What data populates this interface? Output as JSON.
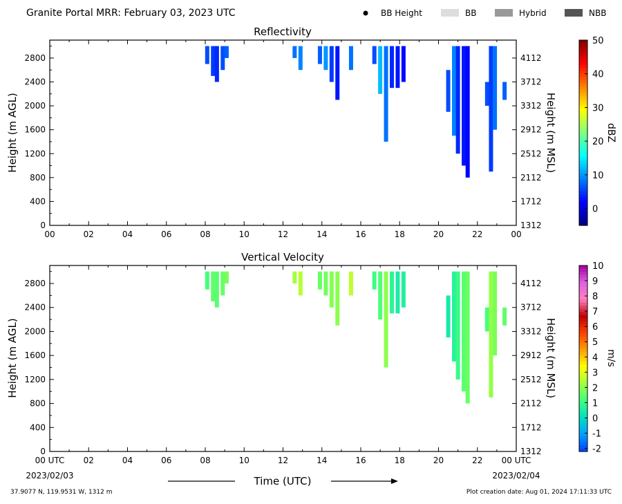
{
  "header": {
    "title": "Granite Portal MRR:  February 03, 2023 UTC",
    "legend": [
      {
        "label": "BB Height",
        "symbol": "dot",
        "color": "#000000"
      },
      {
        "label": "BB",
        "symbol": "box",
        "color": "#dddddd"
      },
      {
        "label": "Hybrid",
        "symbol": "box",
        "color": "#999999"
      },
      {
        "label": "NBB",
        "symbol": "box",
        "color": "#555555"
      }
    ]
  },
  "chart_data": [
    {
      "type": "heatmap",
      "title": "Reflectivity",
      "ylabel": "Height (m AGL)",
      "y2label": "Height (m MSL)",
      "yticks": [
        0,
        400,
        800,
        1200,
        1600,
        2000,
        2400,
        2800
      ],
      "y2ticks": [
        1312,
        1712,
        2112,
        2512,
        2912,
        3312,
        3712,
        4112
      ],
      "xticks": [
        "00",
        "02",
        "04",
        "06",
        "08",
        "10",
        "12",
        "14",
        "16",
        "18",
        "20",
        "22",
        "00"
      ],
      "xlim": [
        0,
        24
      ],
      "ylim": [
        0,
        3100
      ],
      "colorbar": {
        "label": "dBZ",
        "ticks": [
          0,
          10,
          20,
          30,
          40,
          50
        ],
        "range": [
          -5,
          50
        ],
        "colors": [
          "#000080",
          "#0000ff",
          "#0080ff",
          "#00ffff",
          "#80ff80",
          "#ffff00",
          "#ff8000",
          "#ff0000",
          "#800000"
        ]
      },
      "data_columns": [
        {
          "x": 8.1,
          "top": 3000,
          "bottom": 2700,
          "value": 6
        },
        {
          "x": 8.4,
          "top": 3000,
          "bottom": 2500,
          "value": 5
        },
        {
          "x": 8.6,
          "top": 3000,
          "bottom": 2400,
          "value": 4
        },
        {
          "x": 8.9,
          "top": 3000,
          "bottom": 2600,
          "value": 6
        },
        {
          "x": 9.1,
          "top": 3000,
          "bottom": 2800,
          "value": 7
        },
        {
          "x": 12.6,
          "top": 3000,
          "bottom": 2800,
          "value": 8
        },
        {
          "x": 12.9,
          "top": 3000,
          "bottom": 2600,
          "value": 9
        },
        {
          "x": 13.9,
          "top": 3000,
          "bottom": 2700,
          "value": 7
        },
        {
          "x": 14.2,
          "top": 3000,
          "bottom": 2600,
          "value": 10
        },
        {
          "x": 14.5,
          "top": 3000,
          "bottom": 2400,
          "value": 5
        },
        {
          "x": 14.8,
          "top": 3000,
          "bottom": 2100,
          "value": 3
        },
        {
          "x": 15.5,
          "top": 3000,
          "bottom": 2600,
          "value": 8
        },
        {
          "x": 16.7,
          "top": 3000,
          "bottom": 2700,
          "value": 6
        },
        {
          "x": 17.0,
          "top": 3000,
          "bottom": 2200,
          "value": 12
        },
        {
          "x": 17.3,
          "top": 3000,
          "bottom": 1400,
          "value": 8
        },
        {
          "x": 17.6,
          "top": 3000,
          "bottom": 2300,
          "value": 4
        },
        {
          "x": 17.9,
          "top": 3000,
          "bottom": 2300,
          "value": 3
        },
        {
          "x": 18.2,
          "top": 3000,
          "bottom": 2400,
          "value": 2
        },
        {
          "x": 20.5,
          "top": 2600,
          "bottom": 1900,
          "value": 6
        },
        {
          "x": 20.8,
          "top": 3000,
          "bottom": 1500,
          "value": 9
        },
        {
          "x": 21.0,
          "top": 3000,
          "bottom": 1200,
          "value": 4
        },
        {
          "x": 21.3,
          "top": 3000,
          "bottom": 1000,
          "value": 3
        },
        {
          "x": 21.5,
          "top": 3000,
          "bottom": 800,
          "value": 2
        },
        {
          "x": 22.5,
          "top": 2400,
          "bottom": 2000,
          "value": 6
        },
        {
          "x": 22.7,
          "top": 3000,
          "bottom": 900,
          "value": 5
        },
        {
          "x": 22.9,
          "top": 3000,
          "bottom": 1600,
          "value": 8
        },
        {
          "x": 23.4,
          "top": 2400,
          "bottom": 2100,
          "value": 7
        }
      ]
    },
    {
      "type": "heatmap",
      "title": "Vertical Velocity",
      "ylabel": "Height (m AGL)",
      "y2label": "Height (m MSL)",
      "yticks": [
        0,
        400,
        800,
        1200,
        1600,
        2000,
        2400,
        2800
      ],
      "y2ticks": [
        1312,
        1712,
        2112,
        2512,
        2912,
        3312,
        3712,
        4112
      ],
      "xticks": [
        "00 UTC",
        "02",
        "04",
        "06",
        "08",
        "10",
        "12",
        "14",
        "16",
        "18",
        "20",
        "22",
        "00 UTC"
      ],
      "xlim": [
        0,
        24
      ],
      "ylim": [
        0,
        3100
      ],
      "colorbar": {
        "label": "m/s",
        "ticks": [
          -2,
          -1,
          0,
          1,
          2,
          3,
          4,
          5,
          6,
          7,
          8,
          9,
          10
        ],
        "range": [
          -2.2,
          10
        ],
        "colors": [
          "#0040ff",
          "#00a0ff",
          "#00e0c0",
          "#40ff80",
          "#a0ff40",
          "#ffff00",
          "#ffa000",
          "#ff4000",
          "#c00000",
          "#ff80c0",
          "#e060e0",
          "#a000a0"
        ]
      },
      "data_columns": [
        {
          "x": 8.1,
          "top": 3000,
          "bottom": 2700,
          "value": 1.2
        },
        {
          "x": 8.4,
          "top": 3000,
          "bottom": 2500,
          "value": 1.5
        },
        {
          "x": 8.6,
          "top": 3000,
          "bottom": 2400,
          "value": 1.4
        },
        {
          "x": 8.9,
          "top": 3000,
          "bottom": 2600,
          "value": 1.6
        },
        {
          "x": 9.1,
          "top": 3000,
          "bottom": 2800,
          "value": 1.8
        },
        {
          "x": 12.6,
          "top": 3000,
          "bottom": 2800,
          "value": 2.3
        },
        {
          "x": 12.9,
          "top": 3000,
          "bottom": 2600,
          "value": 2.5
        },
        {
          "x": 13.9,
          "top": 3000,
          "bottom": 2700,
          "value": 1.6
        },
        {
          "x": 14.2,
          "top": 3000,
          "bottom": 2600,
          "value": 1.7
        },
        {
          "x": 14.5,
          "top": 3000,
          "bottom": 2400,
          "value": 1.9
        },
        {
          "x": 14.8,
          "top": 3000,
          "bottom": 2100,
          "value": 2.0
        },
        {
          "x": 15.5,
          "top": 3000,
          "bottom": 2600,
          "value": 2.6
        },
        {
          "x": 16.7,
          "top": 3000,
          "bottom": 2700,
          "value": 1.1
        },
        {
          "x": 17.0,
          "top": 3000,
          "bottom": 2200,
          "value": 1.3
        },
        {
          "x": 17.3,
          "top": 3000,
          "bottom": 1400,
          "value": 2.0
        },
        {
          "x": 17.6,
          "top": 3000,
          "bottom": 2300,
          "value": 0.8
        },
        {
          "x": 17.9,
          "top": 3000,
          "bottom": 2300,
          "value": 0.5
        },
        {
          "x": 18.2,
          "top": 3000,
          "bottom": 2400,
          "value": 0.6
        },
        {
          "x": 20.5,
          "top": 2600,
          "bottom": 1900,
          "value": 0.4
        },
        {
          "x": 20.8,
          "top": 3000,
          "bottom": 1500,
          "value": 0.7
        },
        {
          "x": 21.0,
          "top": 3000,
          "bottom": 1200,
          "value": 1.0
        },
        {
          "x": 21.3,
          "top": 3000,
          "bottom": 1000,
          "value": 1.4
        },
        {
          "x": 21.5,
          "top": 3000,
          "bottom": 800,
          "value": 1.6
        },
        {
          "x": 22.5,
          "top": 2400,
          "bottom": 2000,
          "value": 1.2
        },
        {
          "x": 22.7,
          "top": 3000,
          "bottom": 900,
          "value": 2.1
        },
        {
          "x": 22.9,
          "top": 3000,
          "bottom": 1600,
          "value": 1.8
        },
        {
          "x": 23.4,
          "top": 2400,
          "bottom": 2100,
          "value": 1.5
        }
      ]
    }
  ],
  "footer": {
    "start_date": "2023/02/03",
    "end_date": "2023/02/04",
    "xlabel": "Time (UTC)",
    "location": "37.9077 N, 119.9531 W, 1312 m",
    "created": "Plot creation date: Aug 01, 2024 17:11:33 UTC"
  }
}
